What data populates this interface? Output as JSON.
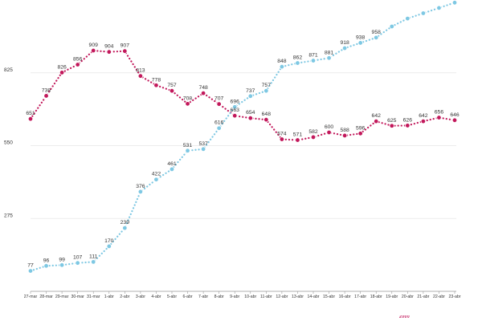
{
  "chart_data": {
    "type": "line",
    "title": "",
    "xlabel": "",
    "ylabel": "",
    "ylim": [
      0,
      1100
    ],
    "yticks": [
      275,
      550,
      825
    ],
    "grid": true,
    "legend": "none",
    "categories": [
      "27-mar",
      "28-mar",
      "29-mar",
      "30-mar",
      "31-mar",
      "1-abr",
      "2-abr",
      "3-abr",
      "4-abr",
      "5-abr",
      "6-abr",
      "7-abr",
      "8-abr",
      "9-abr",
      "10-abr",
      "11-abr",
      "12-abr",
      "13-abr",
      "14-abr",
      "15-abr",
      "16-abr",
      "17-abr",
      "18-abr",
      "19-abr",
      "20-abr",
      "21-abr",
      "22-abr",
      "23-abr"
    ],
    "series": [
      {
        "color": "#c2185b",
        "values": [
          651,
          738,
          826,
          856,
          909,
          904,
          907,
          813,
          778,
          757,
          708,
          748,
          707,
          663,
          654,
          648,
          574,
          571,
          582,
          600,
          588,
          596,
          642,
          625,
          626,
          642,
          656,
          646
        ]
      },
      {
        "color": "#7ec8e3",
        "values": [
          77,
          96,
          99,
          107,
          111,
          170,
          239,
          376,
          422,
          461,
          531,
          537,
          616,
          696,
          737,
          757,
          848,
          862,
          871,
          881,
          918,
          938,
          958,
          1000,
          1030,
          1050,
          1070,
          1090
        ]
      }
    ],
    "labels_shown": {
      "series_0": [
        651,
        738,
        826,
        856,
        909,
        904,
        907,
        813,
        778,
        757,
        708,
        748,
        707,
        663,
        654,
        648,
        574,
        571,
        582,
        600,
        588,
        596,
        642,
        625,
        626,
        642,
        656,
        646
      ],
      "series_1": [
        77,
        96,
        99,
        107,
        111,
        170,
        239,
        376,
        422,
        461,
        531,
        537,
        616,
        696,
        737,
        757,
        848,
        862,
        871,
        881,
        918,
        938,
        958
      ]
    }
  },
  "logo_text": "2000"
}
